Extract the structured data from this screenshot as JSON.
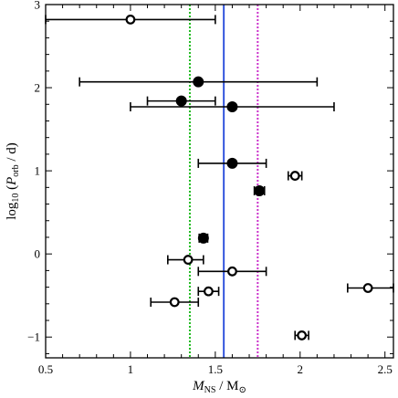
{
  "chart_data": {
    "type": "scatter",
    "xlabel": {
      "var": "M",
      "sub": "NS",
      "sep": " / M",
      "sun": "⊙"
    },
    "ylabel": {
      "pre": "log",
      "pre_sub": "10",
      "open": " (",
      "var": "P",
      "sub": "orb",
      "post": " / d)"
    },
    "xlim": [
      0.5,
      2.55
    ],
    "ylim": [
      -1.25,
      3.0
    ],
    "xticks": [
      "0.5",
      "1",
      "1.5",
      "2",
      "2.5"
    ],
    "xtick_values": [
      0.5,
      1.0,
      1.5,
      2.0,
      2.5
    ],
    "yticks": [
      "−1",
      "0",
      "1",
      "2",
      "3"
    ],
    "ytick_values": [
      -1,
      0,
      1,
      2,
      3
    ],
    "vlines": [
      {
        "x": 1.35,
        "color": "#22bb22",
        "style": "dotted"
      },
      {
        "x": 1.55,
        "color": "#3355dd",
        "style": "solid"
      },
      {
        "x": 1.75,
        "color": "#cc33cc",
        "style": "dotted"
      }
    ],
    "series": [
      {
        "marker": "filled",
        "points": [
          {
            "x": 1.4,
            "y": 2.07,
            "xerr": [
              0.7,
              0.7
            ]
          },
          {
            "x": 1.3,
            "y": 1.84,
            "xerr": [
              0.2,
              0.2
            ]
          },
          {
            "x": 1.6,
            "y": 1.77,
            "xerr": [
              0.6,
              0.6
            ]
          },
          {
            "x": 1.6,
            "y": 1.09,
            "xerr": [
              0.2,
              0.2
            ]
          },
          {
            "x": 1.76,
            "y": 0.76,
            "xerr": [
              0.03,
              0.03
            ]
          },
          {
            "x": 1.43,
            "y": 0.19,
            "xerr": [
              0.025,
              0.025
            ]
          }
        ]
      },
      {
        "marker": "open",
        "points": [
          {
            "x": 1.0,
            "y": 2.82,
            "xerr": [
              0.5,
              0.5
            ]
          },
          {
            "x": 1.97,
            "y": 0.94,
            "xerr": [
              0.04,
              0.04
            ]
          },
          {
            "x": 1.34,
            "y": -0.07,
            "xerr": [
              0.12,
              0.09
            ]
          },
          {
            "x": 1.6,
            "y": -0.21,
            "xerr": [
              0.2,
              0.2
            ]
          },
          {
            "x": 2.4,
            "y": -0.41,
            "xerr": [
              0.12,
              0.15
            ]
          },
          {
            "x": 1.46,
            "y": -0.45,
            "xerr": [
              0.06,
              0.06
            ]
          },
          {
            "x": 1.26,
            "y": -0.58,
            "xerr": [
              0.14,
              0.14
            ]
          },
          {
            "x": 2.01,
            "y": -0.98,
            "xerr": [
              0.04,
              0.04
            ]
          }
        ]
      }
    ]
  }
}
